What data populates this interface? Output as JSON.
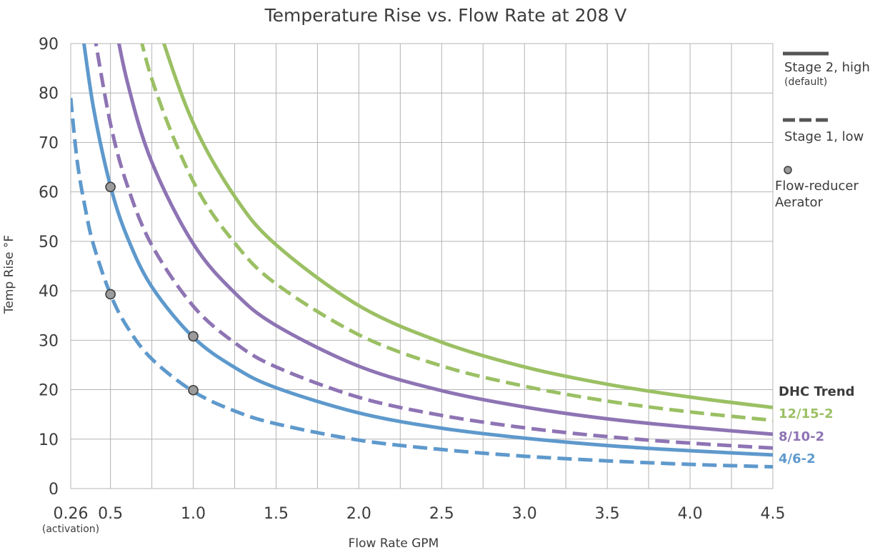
{
  "chart_data": {
    "type": "line",
    "title": "Temperature Rise vs. Flow Rate at 208 V",
    "xlabel": "Flow Rate GPM",
    "ylabel": "Temp Rise °F",
    "xlim": [
      0.26,
      4.5
    ],
    "ylim": [
      0,
      90
    ],
    "x_ticks": [
      {
        "value": 0.26,
        "label": "0.26"
      },
      {
        "value": 0.5,
        "label": "0.5"
      },
      {
        "value": 1.0,
        "label": "1.0"
      },
      {
        "value": 1.5,
        "label": "1.5"
      },
      {
        "value": 2.0,
        "label": "2.0"
      },
      {
        "value": 2.5,
        "label": "2.5"
      },
      {
        "value": 3.0,
        "label": "3.0"
      },
      {
        "value": 3.5,
        "label": "3.5"
      },
      {
        "value": 4.0,
        "label": "4.0"
      },
      {
        "value": 4.5,
        "label": "4.5"
      }
    ],
    "x_tick_note": "(activation)",
    "x_gridlines": [
      0.26,
      0.5,
      0.75,
      1.0,
      1.25,
      1.5,
      1.75,
      2.0,
      2.25,
      2.5,
      2.75,
      3.0,
      3.25,
      3.5,
      3.75,
      4.0,
      4.25,
      4.5
    ],
    "y_ticks": [
      0,
      10,
      20,
      30,
      40,
      50,
      60,
      70,
      80,
      90
    ],
    "grid": true,
    "series": [
      {
        "model": "12/15-2",
        "stage": "Stage 2, high",
        "style": "solid",
        "color": "#9bc064",
        "x": [
          0.7,
          0.8,
          1.0,
          1.25,
          1.5,
          2.0,
          2.5,
          3.0,
          3.5,
          4.0,
          4.5
        ],
        "y": [
          105,
          92.4,
          73.9,
          59.1,
          49.3,
          37.0,
          29.6,
          24.6,
          21.1,
          18.5,
          16.4
        ]
      },
      {
        "model": "12/15-2",
        "stage": "Stage 1, low",
        "style": "dashed",
        "color": "#9bc064",
        "x": [
          0.6,
          0.75,
          1.0,
          1.25,
          1.5,
          2.0,
          2.5,
          3.0,
          3.5,
          4.0,
          4.5
        ],
        "y": [
          103.5,
          82.8,
          62.1,
          49.7,
          41.4,
          31.1,
          24.8,
          20.7,
          17.7,
          15.5,
          13.8
        ]
      },
      {
        "model": "8/10-2",
        "stage": "Stage 2, high",
        "style": "solid",
        "color": "#8e74b4",
        "x": [
          0.5,
          0.6,
          0.75,
          1.0,
          1.25,
          1.5,
          2.0,
          2.5,
          3.0,
          3.5,
          4.0,
          4.5
        ],
        "y": [
          99.0,
          82.5,
          66.0,
          49.5,
          39.6,
          33.0,
          24.75,
          19.8,
          16.5,
          14.1,
          12.4,
          11.0
        ]
      },
      {
        "model": "8/10-2",
        "stage": "Stage 1, low",
        "style": "dashed",
        "color": "#8e74b4",
        "x": [
          0.4,
          0.5,
          0.6,
          0.75,
          1.0,
          1.25,
          1.5,
          2.0,
          2.5,
          3.0,
          3.5,
          4.0,
          4.5
        ],
        "y": [
          92.3,
          73.8,
          61.5,
          49.2,
          36.9,
          29.5,
          24.6,
          18.45,
          14.8,
          12.3,
          10.5,
          9.2,
          8.2
        ]
      },
      {
        "model": "4/6-2",
        "stage": "Stage 2, high",
        "style": "solid",
        "color": "#5e99cc",
        "x": [
          0.34,
          0.4,
          0.5,
          0.6,
          0.75,
          1.0,
          1.25,
          1.5,
          2.0,
          2.5,
          3.0,
          3.5,
          4.0,
          4.5
        ],
        "y": [
          90.0,
          76.5,
          61.2,
          51.0,
          40.8,
          30.6,
          24.5,
          20.4,
          15.3,
          12.2,
          10.2,
          8.7,
          7.65,
          6.8
        ]
      },
      {
        "model": "4/6-2",
        "stage": "Stage 1, low",
        "style": "dashed",
        "color": "#5e99cc",
        "x": [
          0.26,
          0.3,
          0.35,
          0.4,
          0.5,
          0.6,
          0.75,
          1.0,
          1.25,
          1.5,
          2.0,
          2.5,
          3.0,
          3.5,
          4.0,
          4.5
        ],
        "y": [
          79.0,
          66.0,
          56.3,
          49.0,
          39.3,
          32.75,
          26.2,
          19.65,
          15.7,
          13.1,
          9.8,
          7.9,
          6.55,
          5.6,
          4.9,
          4.4
        ]
      }
    ],
    "markers": [
      {
        "x": 0.5,
        "y": 61
      },
      {
        "x": 0.5,
        "y": 39.3
      },
      {
        "x": 1.0,
        "y": 30.8
      },
      {
        "x": 1.0,
        "y": 19.9
      }
    ],
    "legend": {
      "placement": "right",
      "solid_label": "Stage 2, high",
      "solid_note": "(default)",
      "dashed_label": "Stage 1, low",
      "marker_label_line1": "Flow-reducer",
      "marker_label_line2": "Aerator"
    },
    "trend_legend": {
      "title": "DHC Trend",
      "items": [
        {
          "label": "12/15-2",
          "color": "#9bc064"
        },
        {
          "label": "8/10-2",
          "color": "#8e74b4"
        },
        {
          "label": "4/6-2",
          "color": "#5e99cc"
        }
      ]
    },
    "colors": {
      "grid": "#b4b4b4",
      "marker_fill": "#9b9b9b",
      "marker_stroke": "#3c3c3c",
      "legend_line": "#555555"
    }
  }
}
